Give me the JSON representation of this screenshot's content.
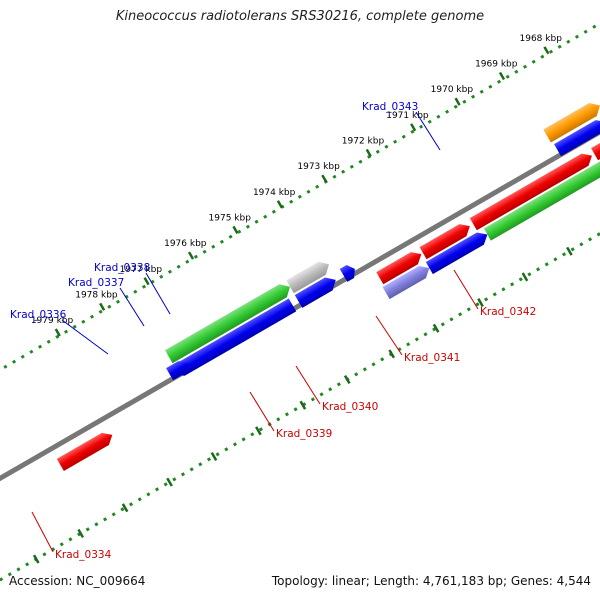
{
  "title": "Kineococcus radiotolerans SRS30216, complete genome",
  "footer": {
    "accession": "Accession: NC_009664",
    "summary": "Topology: linear; Length: 4,761,183 bp; Genes: 4,544"
  },
  "ticks": [
    "1968 kbp",
    "1969 kbp",
    "1970 kbp",
    "1971 kbp",
    "1972 kbp",
    "1973 kbp",
    "1974 kbp",
    "1975 kbp",
    "1976 kbp",
    "1977 kbp",
    "1978 kbp",
    "1979 kbp"
  ],
  "gene_labels": [
    {
      "name": "Krad_0343",
      "color": "#0000cc"
    },
    {
      "name": "Krad_0338",
      "color": "#0000cc"
    },
    {
      "name": "Krad_0337",
      "color": "#0000cc"
    },
    {
      "name": "Krad_0336",
      "color": "#0000cc"
    },
    {
      "name": "Krad_0342",
      "color": "#cc0000"
    },
    {
      "name": "Krad_0341",
      "color": "#cc0000"
    },
    {
      "name": "Krad_0340",
      "color": "#cc0000"
    },
    {
      "name": "Krad_0339",
      "color": "#cc0000"
    },
    {
      "name": "Krad_0334",
      "color": "#cc0000"
    }
  ],
  "colors": {
    "red": "#ee0000",
    "blue": "#0000ee",
    "green": "#33cc33",
    "gray": "#bbbbbb",
    "orange": "#ff9900",
    "backbone": "#777777",
    "tickline": "#228822"
  }
}
